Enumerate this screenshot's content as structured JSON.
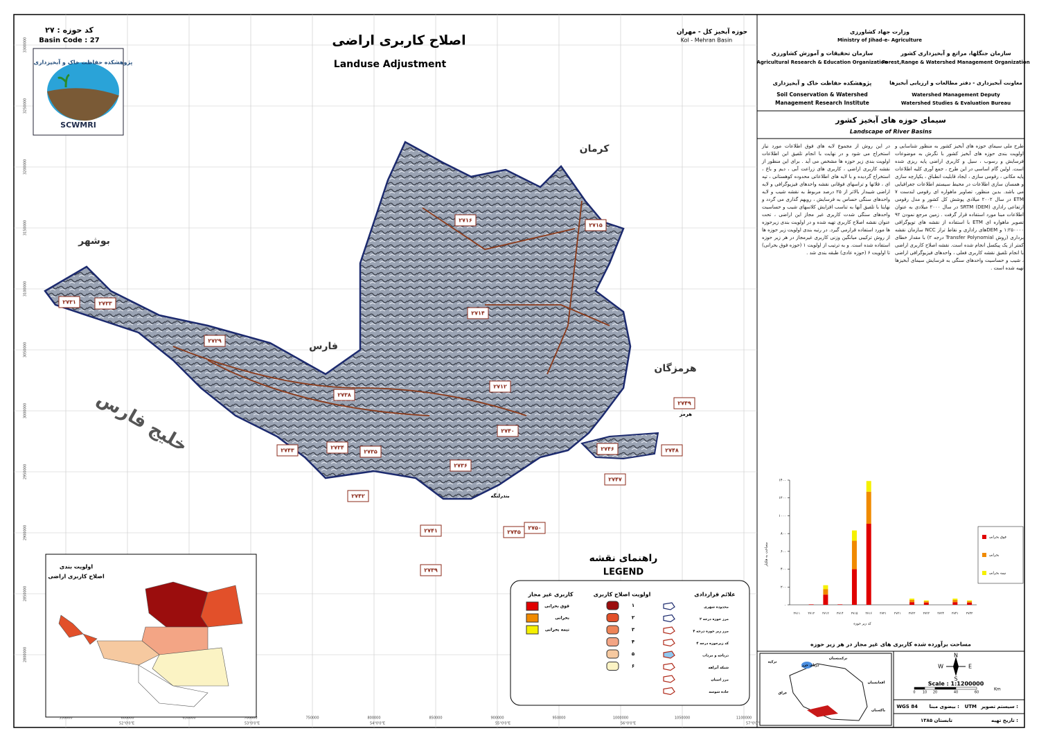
{
  "header": {
    "basin_code_fa": "کد حوزه : ۲۷",
    "basin_code": "Basin Code : 27",
    "logo_text_fa": "پژوهشکده حفاظت خاک و آبخیزداری",
    "logo_text": "SCWMRI",
    "title_fa": "اصلاح کاربری اراضی",
    "title": "Landuse Adjustment",
    "basin_fa": "حوزه آبخیز کل - مهران",
    "basin": "Kol - Mehran Basin"
  },
  "organizations": {
    "ministry_fa": "وزارت جهاد کشاورزی",
    "ministry": "Ministry of Jihad-e- Agriculture",
    "areo_fa": "سازمان تحقیقات و آموزش کشاورزی",
    "areo": "Agricultural Research & Education Organization",
    "frwo_fa": "سازمان جنگلها، مراتع و آبخیزداری کشور",
    "frwo": "Forest,Range & Watershed Management Organization",
    "scwmri_fa": "پژوهشکده حفاظت خاک و آبخیزداری",
    "scwmri": "Soil Conservation & Watershed",
    "scwmri2": "Management Research Institute",
    "deputy_fa": "معاونت آبخیزداری - دفتر مطالعات و ارزیابی آبخیزها",
    "deputy": "Watershed Management Deputy",
    "bureau": "Watershed Studies & Evaluation Bureau",
    "project_fa": "سیمای حوزه های آبخیز کشور",
    "project": "Landscape of River Basins"
  },
  "description": {
    "right": "طرح ملی سیمای حوزه های آبخیز کشور به منظور شناسایی و اولویت بندی حوزه های آبخیز کشور با نگرش به موضوعات فرسایش و رسوب ، سیل و کاربری اراضی پایه ریزی شده است. اولین گام اساسی در این طرح ، جمع آوری کلیه اطلاعات پایه مکانی ، رقومی سازی ، ایجاد قابلیت انطباق ، یکپارچه سازی و همسان سازی اطلاعات در محیط سیستم اطلاعات جغرافیایی می باشد. بدین منظور، تصاویر ماهواره ای رقومی لندست ۷ ETM در سال ۲۰۰۲ میلادی پوشش کل کشور و مدل رقومی ارتفاعی راداری SRTM (DEM) در سال ۲۰۰۰ میلادی به عنوان اطلاعات مبنا مورد استفاده قرار گرفت . زمین مرجع نمودن ۹۲ تصویر ماهواره ای ETM با استفاده از نقشه های توپوگرافی ۱:۲۵۰۰۰۰ و DEMهای راداری و نقاط تراز NCC سازمان نقشه برداری (روش Transfer Polynomial درجه ۲) با مقدار خطای کمتر از یک پیکسل انجام شده است. نقشه اصلاح کاربری اراضی با انجام تلفیق نقشه کاربری فعلی ، واحدهای فیزیوگرافی اراضی ، شیب و حساسیت واحدهای سنگی به فرسایش سیمای آبخیزها تهیه شده است .",
    "left": "در این روش از مجموع لایه های فوق اطلاعات مورد نیاز استخراج می شود و در نهایت با انجام تلفیق این اطلاعات اولویت بندی زیر حوزه ها مشخص می آید . برای این منظور از نقشه کاربری اراضی ، کاربری های زراعت آبی ، دیم و باغ ، استخراج گردیده و با لایه های اطلاعاتی محدوده کوهستانی ، تپه ای ، فلاتها و تراسهای فوقانی نقشه واحدهای فیزیوگرافی و لایه اراضی شیبدار بالاتر از ۲۵ درصد مربوط به نقشه شیب و لایه واحدهای سنگی حساس به فرسایش ، رویهم گذاری می گردد و نهایتا با تلفیق آنها به تناسب افزایش کلاسهای شیب و حساسیت واحدهای سنگی شدت کاربری غیر مجاز این اراضی ، تحت عنوان نقشه اصلاح کاربری تهیه شده و در اولویت بندی زیرحوزه ها مورد استفاده قرارمی گیرد. در رتبه بندی اولویت زیر حوزه ها از روش ترکیبی میانگین وزنی کاربری غیرمجاز در هر زیر حوزه استفاده شده است. و به ترتیب از اولویت ۱ (حوزه فوق بحرانی) تا اولویت ۶ (حوزه عادی) طبقه بندی شد ."
  },
  "map": {
    "provinces": [
      "کرمان",
      "بوشهر",
      "فارس",
      "هرمزگان"
    ],
    "sea": "خلیج فارس",
    "places": [
      "بندرلنگه",
      "هرمز"
    ],
    "subbasins": [
      "۲۷۱۶",
      "۲۷۱۵",
      "۲۷۱۴",
      "۲۷۱۲",
      "۲۷۳۱",
      "۲۷۳۳",
      "۲۷۲۹",
      "۲۷۳۸",
      "۲۷۳۴",
      "۲۷۳۵",
      "۲۷۳۶",
      "۲۷۴۰",
      "۲۷۴۶",
      "۲۷۴۹",
      "۲۷۴۸",
      "۲۷۴۷",
      "۲۷۴۳",
      "۲۷۴۲",
      "۲۷۴۱",
      "۲۷۴۵",
      "۲۷۵۰",
      "۲۷۳۹"
    ],
    "eastings": [
      "550000",
      "600000",
      "650000",
      "700000",
      "750000",
      "800000",
      "850000",
      "900000",
      "950000",
      "1000000",
      "1050000",
      "1100000"
    ],
    "longitudes": [
      "52°0'0\"E",
      "53°0'0\"E",
      "54°0'0\"E",
      "55°0'0\"E",
      "56°0'0\"E",
      "57°0'0\"E"
    ],
    "northings": [
      "3300000",
      "3250000",
      "3200000",
      "3150000",
      "3100000",
      "3050000",
      "3000000",
      "2950000",
      "2900000",
      "2850000",
      "2800000"
    ]
  },
  "inset": {
    "title": "اولویت بندی",
    "title2": "اصلاح کاربری اراضی"
  },
  "legend": {
    "title_fa": "راهنمای نقشه",
    "title": "LEGEND",
    "symbols_title": "علائم قراردادی",
    "symbols": [
      "محدوده شهری",
      "مرز حوزه درجه ۲",
      "مرز زیر حوزه درجه ۴",
      "کد زیرحوزه درجه ۴",
      "دریاچه و مرداب",
      "شبکه آبراهه",
      "مرز استان",
      "جاده شوسه"
    ],
    "priority_title": "اولویت اصلاح کاربری",
    "priority": [
      {
        "label": "۱",
        "color": "#9b0d0d"
      },
      {
        "label": "۲",
        "color": "#e2502a"
      },
      {
        "label": "۳",
        "color": "#ee8458"
      },
      {
        "label": "۴",
        "color": "#f3a585"
      },
      {
        "label": "۵",
        "color": "#f6c9a0"
      },
      {
        "label": "۶",
        "color": "#fbf3c4"
      }
    ],
    "unallowed_title": "کاربری غیر مجاز",
    "unallowed": [
      {
        "label": "فوق بحرانی",
        "color": "#e00000"
      },
      {
        "label": "بحرانی",
        "color": "#f08a00"
      },
      {
        "label": "نیمه بحرانی",
        "color": "#f5f000"
      }
    ]
  },
  "chart_data": {
    "type": "bar",
    "stacked": true,
    "title": "مساحت برآورده شده کاربری های غیر مجاز در هر زیر حوزه",
    "x_label": "کد زیر حوزه",
    "y_label": "مساحت به هکتار",
    "categories": [
      "۲۷۱۱",
      "۲۷۱۲",
      "۲۷۱۳",
      "۲۷۱۴",
      "۲۷۱۵",
      "۲۷۱۶",
      "۲۷۲۱",
      "۲۷۳۱",
      "۲۷۳۲",
      "۲۷۳۳",
      "۲۷۳۴",
      "۲۷۴۱",
      "۲۷۴۲"
    ],
    "series": [
      {
        "name": "فوق بحرانی",
        "color": "#e00000",
        "values": [
          0,
          5,
          115,
          5,
          400,
          910,
          0,
          0,
          30,
          25,
          0,
          30,
          25
        ]
      },
      {
        "name": "بحرانی",
        "color": "#f08a00",
        "values": [
          0,
          0,
          60,
          0,
          320,
          360,
          0,
          0,
          25,
          15,
          0,
          25,
          15
        ]
      },
      {
        "name": "نیمه بحرانی",
        "color": "#f5f000",
        "values": [
          0,
          0,
          45,
          0,
          115,
          120,
          0,
          0,
          15,
          10,
          0,
          15,
          10
        ]
      }
    ],
    "ylim": [
      0,
      1400
    ],
    "yticks": [
      {
        "value": 0,
        "label": "۰"
      },
      {
        "value": 200,
        "label": "۲۰۰"
      },
      {
        "value": 400,
        "label": "۴۰۰"
      },
      {
        "value": 600,
        "label": "۶۰۰"
      },
      {
        "value": 800,
        "label": "۸۰۰"
      },
      {
        "value": 1000,
        "label": "۱۰۰۰"
      },
      {
        "value": 1200,
        "label": "۱۲۰۰"
      },
      {
        "value": 1400,
        "label": "۱۴۰۰"
      }
    ],
    "legend": "right"
  },
  "location": {
    "labels": [
      "ترکمنستان",
      "دریای خزر",
      "ترکیه",
      "افغانستان",
      "عراق",
      "پاکستان"
    ]
  },
  "footer": {
    "scale": "Scale : 1:1200000",
    "km": "Km",
    "scale_ticks": [
      "0",
      "10",
      "20",
      "40",
      "60"
    ],
    "projection_fa": "سیستم تصویر :",
    "projection": "UTM",
    "datum_fa": "بیضوی مبنا :",
    "datum": "WGS 84",
    "date_fa": "تاریخ تهیه :",
    "date": "تابستان ۱۳۸۵"
  }
}
